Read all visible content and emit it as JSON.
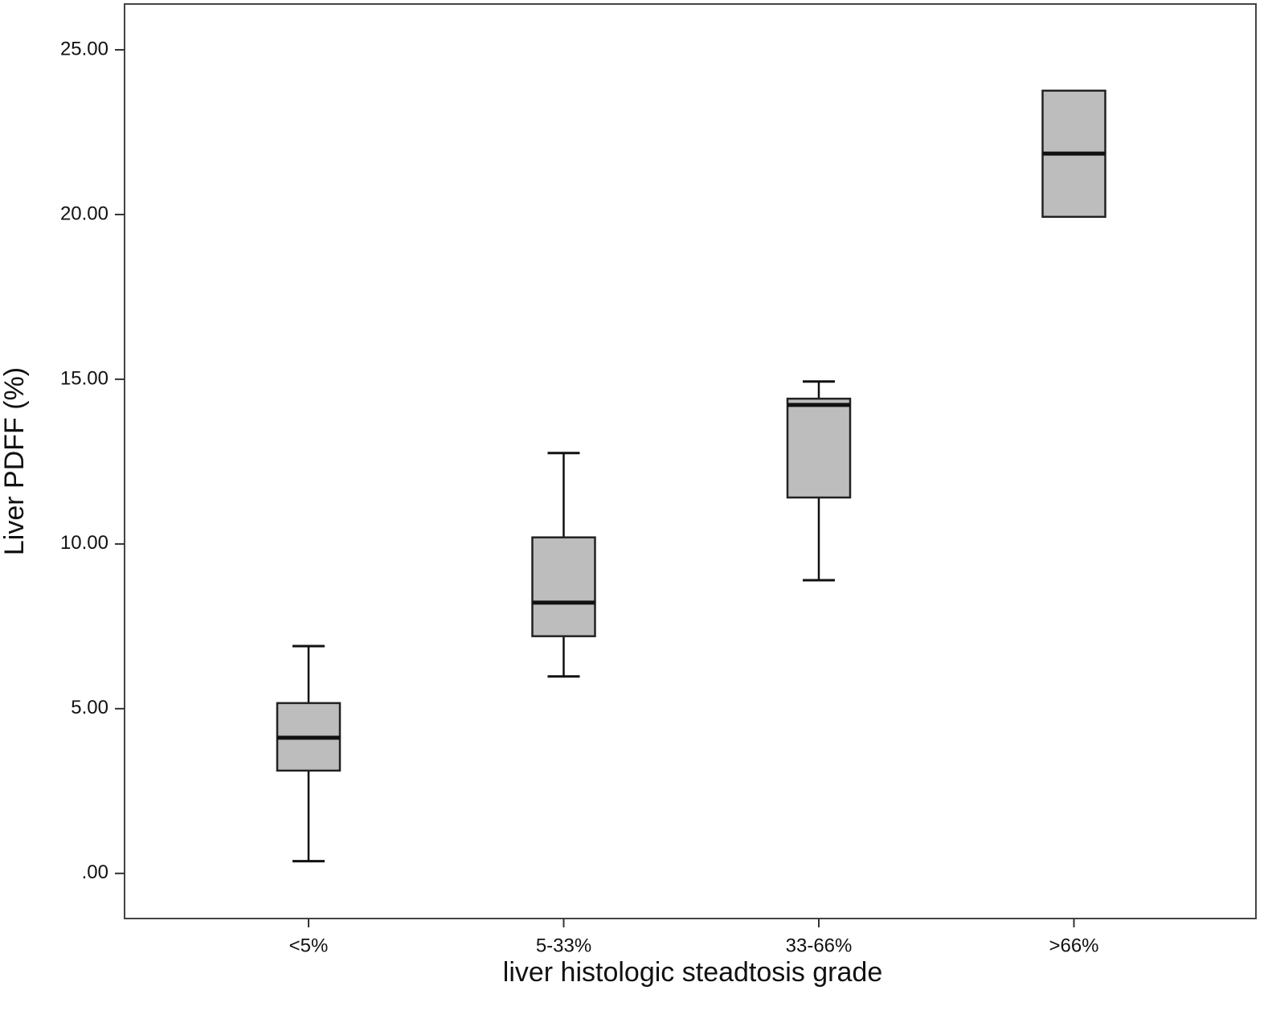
{
  "chart_data": {
    "type": "box",
    "x_label": "liver histologic steadtosis grade",
    "y_label": "Liver PDFF (%)",
    "categories": [
      "<5%",
      "5-33%",
      "33-66%",
      ">66%"
    ],
    "boxes": [
      {
        "min": 0.37,
        "q1": 3.12,
        "median": 4.12,
        "q3": 5.17,
        "max": 6.9
      },
      {
        "min": 5.98,
        "q1": 7.2,
        "median": 8.22,
        "q3": 10.2,
        "max": 12.76
      },
      {
        "min": 8.9,
        "q1": 11.41,
        "median": 14.22,
        "q3": 14.41,
        "max": 14.93
      },
      {
        "min": 19.93,
        "q1": 19.93,
        "median": 21.85,
        "q3": 23.76,
        "max": 23.76
      }
    ],
    "color": "#bdbdbd",
    "ylim": [
      -1.37,
      26.39
    ],
    "yticks": [
      {
        "value": 0,
        "label": ".00"
      },
      {
        "value": 5,
        "label": "5.00"
      },
      {
        "value": 10,
        "label": "10.00"
      },
      {
        "value": 15,
        "label": "15.00"
      },
      {
        "value": 20,
        "label": "20.00"
      },
      {
        "value": 25,
        "label": "25.00"
      }
    ]
  }
}
